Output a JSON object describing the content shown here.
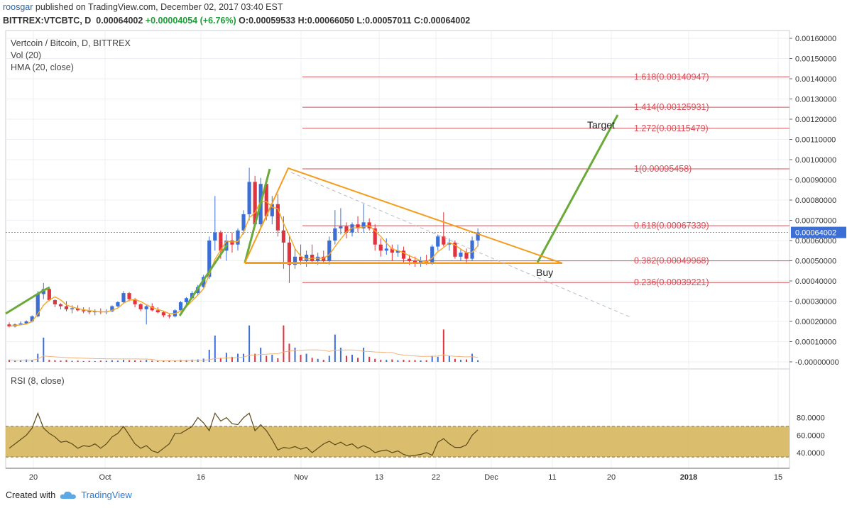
{
  "header": {
    "user": "roosgar",
    "published": " published on TradingView.com, December 02, 2017 03:40 EST",
    "symbol": "BITTREX:VTCBTC, D",
    "last": "0.00064002",
    "change": "+0.00004054 (+6.76%)",
    "o_label": "O:",
    "o_val": "0.00059533",
    "h_label": "H:",
    "h_val": "0.00066050",
    "l_label": "L:",
    "l_val": "0.00057011",
    "c_label": "C:",
    "c_val": "0.00064002"
  },
  "legend": {
    "title": "Vertcoin / Bitcoin, D, BITTREX",
    "vol": "Vol (20)",
    "hma": "HMA (20, close)",
    "rsi": "RSI (8, close)"
  },
  "colors": {
    "up": "#3c6fd6",
    "down": "#e0333f",
    "fib": "#d8505a",
    "triangle": "#f39c1e",
    "arrow": "#6aaa3a",
    "hma": "#f5a623",
    "rsi_band": "#d4b354",
    "rsi_line": "#5a4a1a"
  },
  "chart_data": {
    "type": "candlestick",
    "price_axis": {
      "ticks": [
        "0.00160000",
        "0.00150000",
        "0.00140000",
        "0.00130000",
        "0.00120000",
        "0.00110000",
        "0.00100000",
        "0.00090000",
        "0.00080000",
        "0.00070000",
        "0.00060000",
        "0.00050000",
        "0.00040000",
        "0.00030000",
        "0.00020000",
        "0.00010000",
        "-0.00000000"
      ],
      "last_price": "0.00064002"
    },
    "rsi_axis": {
      "ticks": [
        "80.0000",
        "60.0000",
        "40.0000"
      ]
    },
    "time_axis": {
      "ticks": [
        "20",
        "Oct",
        "16",
        "Nov",
        "13",
        "22",
        "Dec",
        "11",
        "20",
        "2018",
        "15"
      ]
    },
    "fib_levels": [
      {
        "label": "1.618(0.00140947)",
        "value": 0.00140947
      },
      {
        "label": "1.414(0.00125931)",
        "value": 0.00125931
      },
      {
        "label": "1.272(0.00115479)",
        "value": 0.00115479
      },
      {
        "label": "1(0.00095458)",
        "value": 0.00095458
      },
      {
        "label": "0.618(0.00067339)",
        "value": 0.00067339
      },
      {
        "label": "0.382(0.00049968)",
        "value": 0.00049968
      },
      {
        "label": "0.236(0.00039221)",
        "value": 0.00039221
      }
    ],
    "annotations": {
      "target": "Target",
      "buy": "Buy"
    },
    "candles": [
      [
        0.000185,
        0.000195,
        0.00017,
        0.000175
      ],
      [
        0.000175,
        0.00019,
        0.00017,
        0.000185
      ],
      [
        0.000185,
        0.0002,
        0.00018,
        0.00019
      ],
      [
        0.00019,
        0.000205,
        0.000185,
        0.0002
      ],
      [
        0.0002,
        0.00023,
        0.000195,
        0.000225
      ],
      [
        0.000225,
        0.00035,
        0.00022,
        0.000335
      ],
      [
        0.000335,
        0.00039,
        0.00031,
        0.00036
      ],
      [
        0.00036,
        0.00037,
        0.0003,
        0.000305
      ],
      [
        0.000305,
        0.00031,
        0.00027,
        0.000285
      ],
      [
        0.000285,
        0.00029,
        0.00026,
        0.000275
      ],
      [
        0.000275,
        0.0003,
        0.00025,
        0.00026
      ],
      [
        0.00026,
        0.00028,
        0.00024,
        0.000265
      ],
      [
        0.000265,
        0.00028,
        0.00025,
        0.000255
      ],
      [
        0.000255,
        0.00027,
        0.00024,
        0.00025
      ],
      [
        0.00025,
        0.00027,
        0.000235,
        0.000245
      ],
      [
        0.000245,
        0.00026,
        0.00023,
        0.00025
      ],
      [
        0.00025,
        0.000265,
        0.000235,
        0.000245
      ],
      [
        0.000245,
        0.00026,
        0.000235,
        0.00025
      ],
      [
        0.00025,
        0.00028,
        0.000245,
        0.000275
      ],
      [
        0.000275,
        0.0003,
        0.00027,
        0.000295
      ],
      [
        0.000295,
        0.00035,
        0.00029,
        0.00034
      ],
      [
        0.00034,
        0.000345,
        0.0003,
        0.00031
      ],
      [
        0.00031,
        0.000315,
        0.00027,
        0.000285
      ],
      [
        0.000285,
        0.00029,
        0.00025,
        0.00026
      ],
      [
        0.00026,
        0.00028,
        0.000185,
        0.000275
      ],
      [
        0.000275,
        0.00029,
        0.00025,
        0.000255
      ],
      [
        0.000255,
        0.00027,
        0.00024,
        0.000245
      ],
      [
        0.000245,
        0.00025,
        0.00022,
        0.00023
      ],
      [
        0.00023,
        0.00024,
        0.000215,
        0.000225
      ],
      [
        0.000225,
        0.00026,
        0.00022,
        0.000255
      ],
      [
        0.000255,
        0.0003,
        0.00025,
        0.000295
      ],
      [
        0.000295,
        0.00032,
        0.00028,
        0.000315
      ],
      [
        0.000315,
        0.00035,
        0.00031,
        0.00034
      ],
      [
        0.00034,
        0.00038,
        0.00033,
        0.00037
      ],
      [
        0.00037,
        0.00043,
        0.000365,
        0.00042
      ],
      [
        0.00042,
        0.00062,
        0.00041,
        0.0006
      ],
      [
        0.0006,
        0.00082,
        0.00055,
        0.00064
      ],
      [
        0.00064,
        0.00065,
        0.00051,
        0.00055
      ],
      [
        0.00055,
        0.00063,
        0.0005,
        0.0006
      ],
      [
        0.0006,
        0.00064,
        0.00054,
        0.00058
      ],
      [
        0.00058,
        0.00066,
        0.00055,
        0.00065
      ],
      [
        0.00065,
        0.00075,
        0.00063,
        0.00073
      ],
      [
        0.00073,
        0.00096,
        0.0007,
        0.00089
      ],
      [
        0.00089,
        0.00092,
        0.00067,
        0.00068
      ],
      [
        0.00068,
        0.00091,
        0.00066,
        0.00088
      ],
      [
        0.00088,
        0.0009,
        0.0007,
        0.00072
      ],
      [
        0.00072,
        0.00082,
        0.00068,
        0.00078
      ],
      [
        0.00078,
        0.00083,
        0.00062,
        0.00065
      ],
      [
        0.00065,
        0.00072,
        0.00046,
        0.00059
      ],
      [
        0.00059,
        0.00062,
        0.00039,
        0.00048
      ],
      [
        0.00048,
        0.00056,
        0.00046,
        0.00052
      ],
      [
        0.00052,
        0.00058,
        0.00048,
        0.0005
      ],
      [
        0.0005,
        0.00055,
        0.00047,
        0.00053
      ],
      [
        0.00053,
        0.00058,
        0.00049,
        0.0005
      ],
      [
        0.0005,
        0.00054,
        0.00048,
        0.00052
      ],
      [
        0.00052,
        0.00055,
        0.00049,
        0.0005
      ],
      [
        0.0005,
        0.00062,
        0.00048,
        0.0006
      ],
      [
        0.0006,
        0.00075,
        0.00058,
        0.00066
      ],
      [
        0.00066,
        0.00076,
        0.00063,
        0.00067
      ],
      [
        0.00067,
        0.00069,
        0.00061,
        0.00064
      ],
      [
        0.00064,
        0.00069,
        0.00062,
        0.00068
      ],
      [
        0.00068,
        0.00072,
        0.00064,
        0.00066
      ],
      [
        0.00066,
        0.00078,
        0.00064,
        0.00069
      ],
      [
        0.00069,
        0.00071,
        0.00065,
        0.00066
      ],
      [
        0.00066,
        0.00068,
        0.00055,
        0.00058
      ],
      [
        0.00058,
        0.00061,
        0.00052,
        0.00055
      ],
      [
        0.00055,
        0.00061,
        0.00053,
        0.00056
      ],
      [
        0.00056,
        0.00058,
        0.0005,
        0.00054
      ],
      [
        0.00054,
        0.00058,
        0.00052,
        0.00055
      ],
      [
        0.00055,
        0.00057,
        0.00049,
        0.00051
      ],
      [
        0.00051,
        0.00053,
        0.00048,
        0.0005
      ],
      [
        0.0005,
        0.00052,
        0.00047,
        0.00049
      ],
      [
        0.00049,
        0.00052,
        0.00047,
        0.0005
      ],
      [
        0.0005,
        0.00053,
        0.00048,
        0.00049
      ],
      [
        0.00049,
        0.00058,
        0.00048,
        0.00057
      ],
      [
        0.00057,
        0.00063,
        0.00055,
        0.00062
      ],
      [
        0.00062,
        0.00074,
        0.00057,
        0.00058
      ],
      [
        0.00058,
        0.00061,
        0.00055,
        0.00059
      ],
      [
        0.00059,
        0.0006,
        0.00051,
        0.00052
      ],
      [
        0.00052,
        0.00056,
        0.0005,
        0.00054
      ],
      [
        0.00054,
        0.00056,
        0.00049,
        0.00051
      ],
      [
        0.00051,
        0.00062,
        0.0005,
        0.0006
      ],
      [
        0.0006,
        0.00066,
        0.00057,
        0.00064
      ]
    ],
    "volume": [
      1e-05,
      5e-06,
      8e-06,
      1.2e-05,
      9e-06,
      4e-05,
      0.00012,
      1e-05,
      8e-06,
      6e-06,
      9e-06,
      5e-06,
      6e-06,
      4e-06,
      5e-06,
      4e-06,
      6e-06,
      5e-06,
      8e-06,
      6e-06,
      1e-05,
      8e-06,
      7e-06,
      6e-06,
      1e-05,
      6e-06,
      5e-06,
      5e-06,
      6e-06,
      7e-06,
      1e-05,
      9e-06,
      1.1e-05,
      1.2e-05,
      1.6e-05,
      6e-05,
      0.00013,
      2e-05,
      4.5e-05,
      2.5e-05,
      4e-05,
      4e-05,
      0.00018,
      4e-05,
      7e-05,
      3e-05,
      3.5e-05,
      1.8e-05,
      0.00018,
      9e-05,
      7e-05,
      3.5e-05,
      4e-05,
      2e-05,
      1.5e-05,
      1e-05,
      3e-05,
      0.000135,
      7e-05,
      3e-05,
      3.5e-05,
      2e-05,
      7e-05,
      2.5e-05,
      1.5e-05,
      1e-05,
      1e-05,
      1.2e-05,
      8e-06,
      1e-05,
      8e-06,
      9e-06,
      7e-06,
      8e-06,
      3e-05,
      2.5e-05,
      0.00016,
      3e-05,
      1.5e-05,
      1e-05,
      1.2e-05,
      4e-05,
      8e-06
    ],
    "rsi": [
      45,
      50,
      55,
      60,
      68,
      85,
      68,
      62,
      58,
      52,
      53,
      50,
      45,
      48,
      47,
      50,
      45,
      50,
      58,
      62,
      70,
      60,
      50,
      45,
      48,
      42,
      40,
      45,
      50,
      62,
      62,
      66,
      70,
      80,
      74,
      65,
      85,
      76,
      80,
      73,
      72,
      80,
      85,
      65,
      72,
      65,
      55,
      43,
      46,
      45,
      47,
      44,
      46,
      40,
      45,
      50,
      53,
      49,
      52,
      48,
      50,
      45,
      48,
      45,
      40,
      42,
      43,
      40,
      42,
      38,
      36,
      37,
      38,
      40,
      37,
      52,
      56,
      50,
      46,
      46,
      49,
      60,
      66
    ]
  },
  "footer": {
    "created": "Created with",
    "brand": "TradingView"
  }
}
